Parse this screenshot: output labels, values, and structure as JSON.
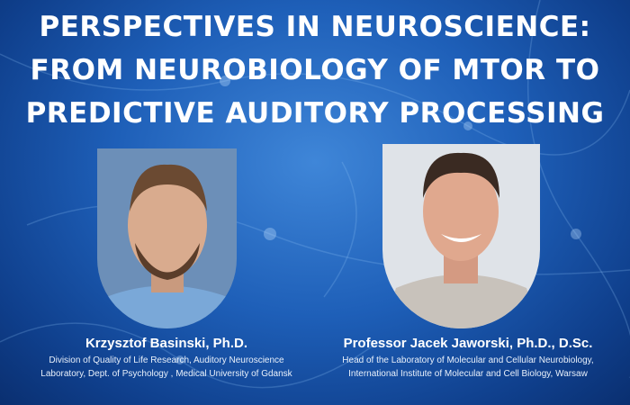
{
  "title": "PERSPECTIVES IN NEUROSCIENCE: FROM NEUROBIOLOGY OF MTOR TO PREDICTIVE AUDITORY PROCESSING",
  "speakers": [
    {
      "name": "Krzysztof Basinski, Ph.D.",
      "affiliation_line1": "Division of Quality of Life Research, Auditory Neuroscience",
      "affiliation_line2": "Laboratory, Dept. of Psychology , Medical University of Gdansk"
    },
    {
      "name": "Professor Jacek Jaworski, Ph.D., D.Sc.",
      "affiliation_line1": "Head of the Laboratory of Molecular and Cellular Neurobiology,",
      "affiliation_line2": "International Institute of Molecular and Cell Biology, Warsaw"
    }
  ],
  "colors": {
    "background": "#1e5fb8",
    "text": "#ffffff"
  }
}
